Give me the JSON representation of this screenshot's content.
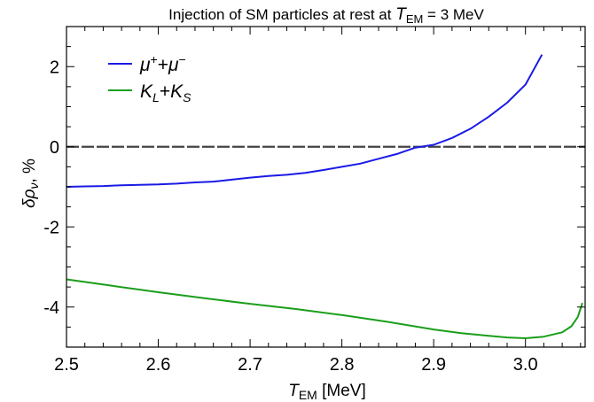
{
  "chart_data": {
    "type": "line",
    "title": {
      "prefix": "Injection of SM particles at rest at ",
      "var": "T",
      "sub": "EM",
      "suffix": " = 3 MeV"
    },
    "xlabel": {
      "var": "T",
      "sub": "EM",
      "unit": " [MeV]"
    },
    "ylabel": {
      "var": "δρ",
      "sub": "ν",
      "unit": ", %"
    },
    "xlim": [
      2.5,
      3.065
    ],
    "ylim": [
      -5.0,
      3.0
    ],
    "x_ticks": [
      {
        "value": 2.5,
        "label": "2.5"
      },
      {
        "value": 2.6,
        "label": "2.6"
      },
      {
        "value": 2.7,
        "label": "2.7"
      },
      {
        "value": 2.8,
        "label": "2.8"
      },
      {
        "value": 2.9,
        "label": "2.9"
      },
      {
        "value": 3.0,
        "label": "3.0"
      }
    ],
    "y_ticks": [
      {
        "value": -4,
        "label": "-4"
      },
      {
        "value": -2,
        "label": "-2"
      },
      {
        "value": 0,
        "label": "0"
      },
      {
        "value": 2,
        "label": "2"
      }
    ],
    "x_minor_step": 0.02,
    "y_minor_step": 0.5,
    "reference_line": {
      "y": 0,
      "style": "dashed"
    },
    "grid": false,
    "legend_position": "top-left",
    "series": [
      {
        "name": "μ⁺+μ⁻",
        "color": "#1a1ae6",
        "x": [
          2.5,
          2.52,
          2.54,
          2.56,
          2.58,
          2.6,
          2.62,
          2.64,
          2.66,
          2.68,
          2.7,
          2.72,
          2.74,
          2.76,
          2.78,
          2.8,
          2.82,
          2.84,
          2.86,
          2.88,
          2.9,
          2.92,
          2.94,
          2.96,
          2.98,
          3.0,
          3.018
        ],
        "y": [
          -1.0,
          -0.99,
          -0.98,
          -0.96,
          -0.95,
          -0.94,
          -0.92,
          -0.89,
          -0.87,
          -0.82,
          -0.77,
          -0.73,
          -0.7,
          -0.65,
          -0.58,
          -0.5,
          -0.42,
          -0.3,
          -0.18,
          -0.02,
          0.05,
          0.22,
          0.45,
          0.75,
          1.1,
          1.55,
          2.3
        ]
      },
      {
        "name": "K_L+K_S",
        "color": "#1a9e1a",
        "x": [
          2.5,
          2.55,
          2.6,
          2.65,
          2.7,
          2.75,
          2.8,
          2.85,
          2.9,
          2.93,
          2.96,
          2.98,
          3.0,
          3.02,
          3.04,
          3.05,
          3.057,
          3.062
        ],
        "y": [
          -3.31,
          -3.47,
          -3.63,
          -3.78,
          -3.92,
          -4.05,
          -4.2,
          -4.37,
          -4.56,
          -4.65,
          -4.72,
          -4.76,
          -4.78,
          -4.74,
          -4.63,
          -4.48,
          -4.25,
          -3.9
        ]
      }
    ]
  }
}
